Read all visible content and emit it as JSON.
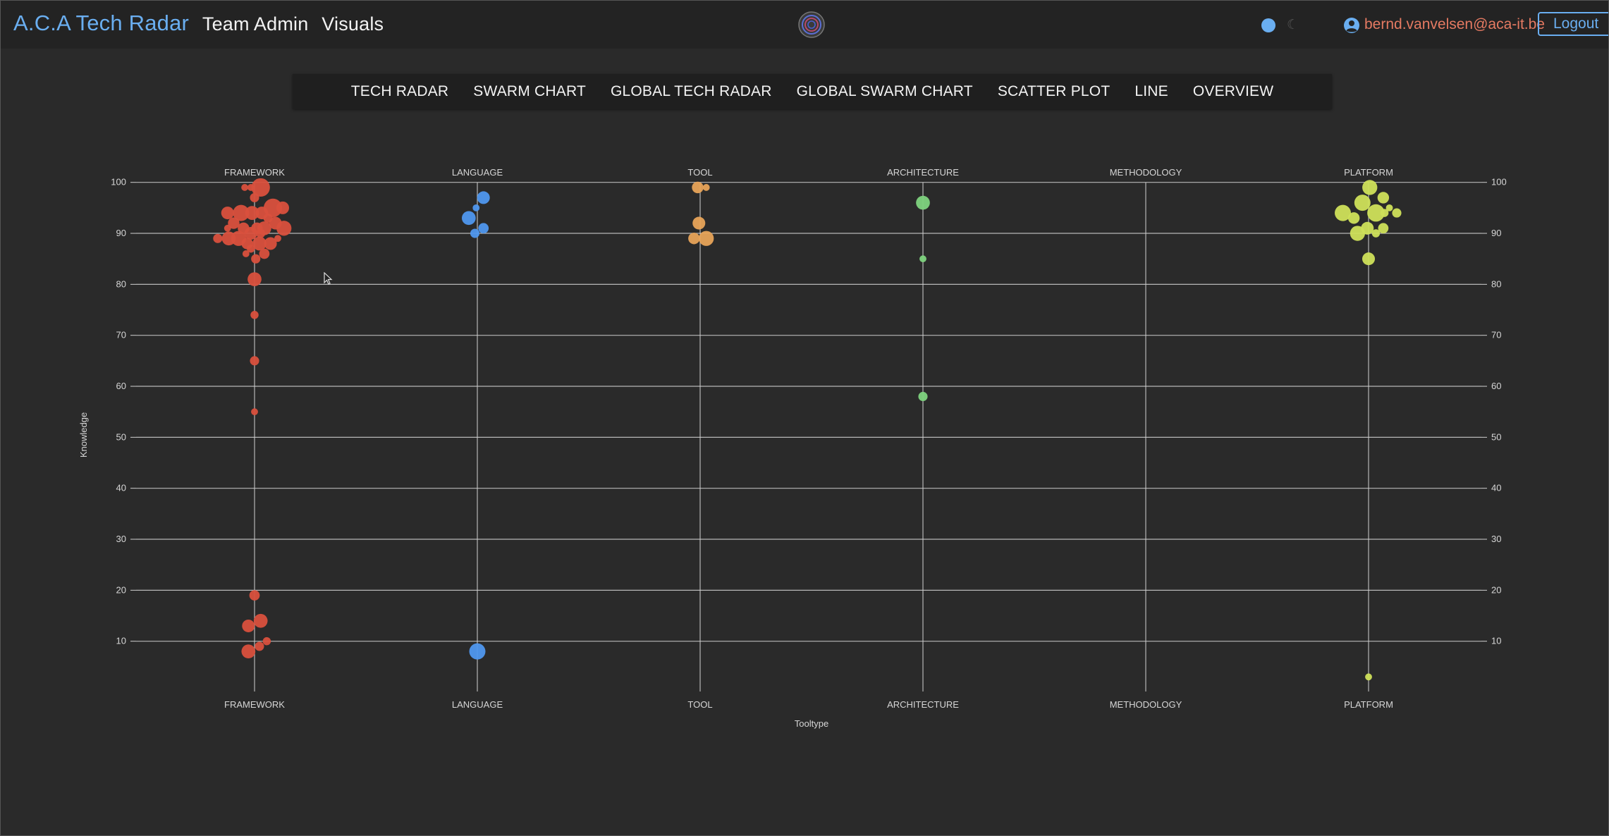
{
  "header": {
    "brand": "A.C.A Tech Radar",
    "team_admin": "Team Admin",
    "visuals": "Visuals",
    "user_email": "bernd.vanvelsen@aca-it.be",
    "logout": "Logout",
    "icons": {
      "logo": "radar-logo-icon",
      "theme": "theme-toggle-icon",
      "user": "user-circle-icon"
    },
    "theme_mode": "dark"
  },
  "nav": {
    "items": [
      "TECH RADAR",
      "SWARM CHART",
      "GLOBAL TECH RADAR",
      "GLOBAL SWARM CHART",
      "SCATTER PLOT",
      "LINE",
      "OVERVIEW"
    ]
  },
  "colors": {
    "background": "#2a2a2a",
    "accent": "#6aaef0",
    "FRAMEWORK": "#d9503d",
    "LANGUAGE": "#4f97ee",
    "TOOL": "#e7a358",
    "ARCHITECTURE": "#7ed37e",
    "METHODOLOGY": "#9a9a9a",
    "PLATFORM": "#cfe05a"
  },
  "chart_data": {
    "type": "scatter",
    "title": "",
    "xlabel": "Tooltype",
    "ylabel": "Knowledge",
    "categories": [
      "FRAMEWORK",
      "LANGUAGE",
      "TOOL",
      "ARCHITECTURE",
      "METHODOLOGY",
      "PLATFORM"
    ],
    "ylim": [
      0,
      100
    ],
    "yticks": [
      10,
      20,
      30,
      40,
      50,
      60,
      70,
      80,
      90,
      100
    ],
    "grid": true,
    "legend": "none",
    "series": [
      {
        "category": "FRAMEWORK",
        "points": [
          {
            "y": 99,
            "r": 1.6,
            "dx": 0.05
          },
          {
            "y": 99,
            "r": 0.6,
            "dx": -0.08
          },
          {
            "y": 99,
            "r": 0.6,
            "dx": -0.03
          },
          {
            "y": 97,
            "r": 0.8,
            "dx": 0
          },
          {
            "y": 95,
            "r": 1.6,
            "dx": 0.15
          },
          {
            "y": 95,
            "r": 1.1,
            "dx": 0.23
          },
          {
            "y": 94,
            "r": 1.4,
            "dx": -0.11
          },
          {
            "y": 94,
            "r": 1.1,
            "dx": -0.22
          },
          {
            "y": 94,
            "r": 1.2,
            "dx": -0.02
          },
          {
            "y": 94,
            "r": 1.1,
            "dx": 0.06
          },
          {
            "y": 93,
            "r": 0.8,
            "dx": 0.11
          },
          {
            "y": 92,
            "r": 1.0,
            "dx": -0.17
          },
          {
            "y": 92,
            "r": 1.1,
            "dx": 0.17
          },
          {
            "y": 91,
            "r": 1.0,
            "dx": -0.09
          },
          {
            "y": 91,
            "r": 1.2,
            "dx": 0.08
          },
          {
            "y": 91,
            "r": 1.0,
            "dx": 0.02
          },
          {
            "y": 91,
            "r": 1.3,
            "dx": 0.24
          },
          {
            "y": 91,
            "r": 0.6,
            "dx": -0.22
          },
          {
            "y": 90,
            "r": 1.1,
            "dx": -0.03
          },
          {
            "y": 90,
            "r": 0.8,
            "dx": 0.05
          },
          {
            "y": 89,
            "r": 0.8,
            "dx": -0.3
          },
          {
            "y": 89,
            "r": 1.2,
            "dx": -0.21
          },
          {
            "y": 89,
            "r": 1.3,
            "dx": -0.13
          },
          {
            "y": 89,
            "r": 0.6,
            "dx": 0.19
          },
          {
            "y": 88,
            "r": 1.0,
            "dx": -0.06
          },
          {
            "y": 88,
            "r": 1.2,
            "dx": 0.04
          },
          {
            "y": 88,
            "r": 1.1,
            "dx": 0.13
          },
          {
            "y": 87,
            "r": 0.7,
            "dx": -0.03
          },
          {
            "y": 86,
            "r": 0.6,
            "dx": -0.07
          },
          {
            "y": 86,
            "r": 0.9,
            "dx": 0.08
          },
          {
            "y": 85,
            "r": 0.8,
            "dx": 0.01
          },
          {
            "y": 81,
            "r": 1.2,
            "dx": 0
          },
          {
            "y": 74,
            "r": 0.7,
            "dx": 0
          },
          {
            "y": 65,
            "r": 0.8,
            "dx": 0
          },
          {
            "y": 55,
            "r": 0.6,
            "dx": 0
          },
          {
            "y": 19,
            "r": 0.9,
            "dx": 0
          },
          {
            "y": 14,
            "r": 1.2,
            "dx": 0.05
          },
          {
            "y": 13,
            "r": 1.1,
            "dx": -0.05
          },
          {
            "y": 10,
            "r": 0.7,
            "dx": 0.1
          },
          {
            "y": 9,
            "r": 0.8,
            "dx": 0.04
          },
          {
            "y": 8,
            "r": 1.2,
            "dx": -0.05
          }
        ]
      },
      {
        "category": "LANGUAGE",
        "points": [
          {
            "y": 97,
            "r": 1.1,
            "dx": 0.05
          },
          {
            "y": 95,
            "r": 0.6,
            "dx": -0.01
          },
          {
            "y": 93,
            "r": 1.2,
            "dx": -0.07
          },
          {
            "y": 91,
            "r": 0.9,
            "dx": 0.05
          },
          {
            "y": 90,
            "r": 0.8,
            "dx": -0.02
          },
          {
            "y": 8,
            "r": 1.4,
            "dx": 0
          }
        ]
      },
      {
        "category": "TOOL",
        "points": [
          {
            "y": 99,
            "r": 1.0,
            "dx": -0.02
          },
          {
            "y": 99,
            "r": 0.6,
            "dx": 0.05
          },
          {
            "y": 92,
            "r": 1.1,
            "dx": -0.01
          },
          {
            "y": 89,
            "r": 1.0,
            "dx": -0.05
          },
          {
            "y": 89,
            "r": 1.3,
            "dx": 0.05
          }
        ]
      },
      {
        "category": "ARCHITECTURE",
        "points": [
          {
            "y": 96,
            "r": 1.2,
            "dx": 0
          },
          {
            "y": 85,
            "r": 0.6,
            "dx": 0
          },
          {
            "y": 58,
            "r": 0.8,
            "dx": 0
          }
        ]
      },
      {
        "category": "METHODOLOGY",
        "points": []
      },
      {
        "category": "PLATFORM",
        "points": [
          {
            "y": 99,
            "r": 1.3,
            "dx": 0.01
          },
          {
            "y": 97,
            "r": 1.0,
            "dx": 0.12
          },
          {
            "y": 96,
            "r": 1.4,
            "dx": -0.05
          },
          {
            "y": 95,
            "r": 0.6,
            "dx": 0.17
          },
          {
            "y": 94,
            "r": 1.4,
            "dx": -0.21
          },
          {
            "y": 94,
            "r": 1.5,
            "dx": 0.06
          },
          {
            "y": 94,
            "r": 0.8,
            "dx": 0.23
          },
          {
            "y": 94,
            "r": 0.7,
            "dx": 0.13
          },
          {
            "y": 93,
            "r": 1.0,
            "dx": -0.12
          },
          {
            "y": 91,
            "r": 1.1,
            "dx": -0.01
          },
          {
            "y": 91,
            "r": 0.9,
            "dx": 0.12
          },
          {
            "y": 90,
            "r": 1.3,
            "dx": -0.09
          },
          {
            "y": 90,
            "r": 0.7,
            "dx": 0.06
          },
          {
            "y": 85,
            "r": 1.1,
            "dx": 0
          },
          {
            "y": 3,
            "r": 0.6,
            "dx": 0
          }
        ]
      }
    ]
  }
}
